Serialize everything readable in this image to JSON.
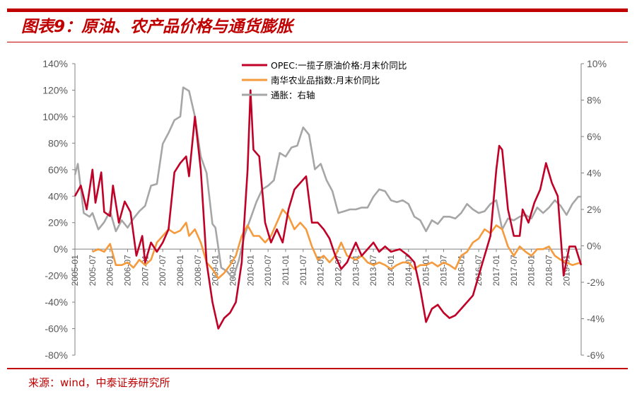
{
  "title": "图表9：原油、农产品价格与通货膨胀",
  "source": "来源：wind，中泰证券研究所",
  "colors": {
    "brand": "#c00000",
    "opec": "#c00026",
    "agri": "#f59b3d",
    "cpi": "#a6a6a6",
    "axis": "#808080"
  },
  "chart_data": {
    "type": "line",
    "x_start": "2005-01",
    "x_end": "2019-06",
    "x_tick_labels": [
      "2005-01",
      "2005-07",
      "2006-01",
      "2006-07",
      "2007-01",
      "2007-07",
      "2008-01",
      "2008-07",
      "2009-01",
      "2009-07",
      "2010-01",
      "2010-07",
      "2011-01",
      "2011-07",
      "2012-01",
      "2012-07",
      "2013-01",
      "2013-07",
      "2014-01",
      "2014-07",
      "2015-01",
      "2015-07",
      "2016-01",
      "2016-07",
      "2017-01",
      "2017-07",
      "2018-01",
      "2018-07",
      "2019-01"
    ],
    "y_left": {
      "min": -0.8,
      "max": 1.4,
      "ticks": [
        "140%",
        "120%",
        "100%",
        "80%",
        "60%",
        "40%",
        "20%",
        "0%",
        "-20%",
        "-40%",
        "-60%",
        "-80%"
      ]
    },
    "y_right": {
      "min": -0.06,
      "max": 0.1,
      "ticks": [
        "10%",
        "8%",
        "6%",
        "4%",
        "2%",
        "0%",
        "-2%",
        "-4%",
        "-6%"
      ]
    },
    "legend": "top-center",
    "series": [
      {
        "name": "OPEC:一揽子原油价格:月末价同比",
        "axis": "left",
        "color": "#c00026",
        "points": [
          [
            "2005-01",
            0.4
          ],
          [
            "2005-03",
            0.48
          ],
          [
            "2005-05",
            0.3
          ],
          [
            "2005-07",
            0.6
          ],
          [
            "2005-08",
            0.35
          ],
          [
            "2005-10",
            0.58
          ],
          [
            "2005-11",
            0.28
          ],
          [
            "2006-01",
            0.25
          ],
          [
            "2006-02",
            0.48
          ],
          [
            "2006-04",
            0.2
          ],
          [
            "2006-06",
            0.36
          ],
          [
            "2006-08",
            0.28
          ],
          [
            "2006-10",
            -0.05
          ],
          [
            "2006-12",
            0.1
          ],
          [
            "2007-01",
            -0.1
          ],
          [
            "2007-03",
            0.05
          ],
          [
            "2007-05",
            -0.02
          ],
          [
            "2007-07",
            0.05
          ],
          [
            "2007-09",
            0.15
          ],
          [
            "2007-11",
            0.58
          ],
          [
            "2008-01",
            0.65
          ],
          [
            "2008-03",
            0.7
          ],
          [
            "2008-04",
            0.55
          ],
          [
            "2008-06",
            1.0
          ],
          [
            "2008-08",
            0.6
          ],
          [
            "2008-10",
            -0.1
          ],
          [
            "2008-12",
            -0.4
          ],
          [
            "2009-02",
            -0.6
          ],
          [
            "2009-04",
            -0.52
          ],
          [
            "2009-06",
            -0.48
          ],
          [
            "2009-08",
            -0.4
          ],
          [
            "2009-10",
            -0.1
          ],
          [
            "2009-12",
            0.6
          ],
          [
            "2010-01",
            1.2
          ],
          [
            "2010-02",
            0.75
          ],
          [
            "2010-04",
            0.7
          ],
          [
            "2010-06",
            0.2
          ],
          [
            "2010-08",
            0.05
          ],
          [
            "2010-10",
            0.15
          ],
          [
            "2010-12",
            0.05
          ],
          [
            "2011-02",
            0.3
          ],
          [
            "2011-04",
            0.45
          ],
          [
            "2011-06",
            0.5
          ],
          [
            "2011-08",
            0.55
          ],
          [
            "2011-10",
            0.2
          ],
          [
            "2011-12",
            0.2
          ],
          [
            "2012-02",
            0.15
          ],
          [
            "2012-04",
            0.08
          ],
          [
            "2012-06",
            -0.05
          ],
          [
            "2012-08",
            -0.15
          ],
          [
            "2012-10",
            -0.1
          ],
          [
            "2013-01",
            0.05
          ],
          [
            "2013-03",
            -0.05
          ],
          [
            "2013-05",
            0.0
          ],
          [
            "2013-07",
            0.05
          ],
          [
            "2013-09",
            -0.02
          ],
          [
            "2013-11",
            0.02
          ],
          [
            "2014-01",
            -0.02
          ],
          [
            "2014-04",
            0.0
          ],
          [
            "2014-07",
            -0.05
          ],
          [
            "2014-09",
            -0.1
          ],
          [
            "2014-11",
            -0.3
          ],
          [
            "2015-01",
            -0.55
          ],
          [
            "2015-03",
            -0.45
          ],
          [
            "2015-05",
            -0.42
          ],
          [
            "2015-07",
            -0.48
          ],
          [
            "2015-09",
            -0.52
          ],
          [
            "2015-11",
            -0.5
          ],
          [
            "2016-01",
            -0.45
          ],
          [
            "2016-03",
            -0.4
          ],
          [
            "2016-05",
            -0.35
          ],
          [
            "2016-07",
            -0.2
          ],
          [
            "2016-09",
            -0.05
          ],
          [
            "2016-11",
            0.1
          ],
          [
            "2017-01",
            0.6
          ],
          [
            "2017-02",
            0.78
          ],
          [
            "2017-03",
            0.75
          ],
          [
            "2017-05",
            0.3
          ],
          [
            "2017-07",
            0.1
          ],
          [
            "2017-09",
            0.1
          ],
          [
            "2017-10",
            0.3
          ],
          [
            "2017-12",
            0.2
          ],
          [
            "2018-02",
            0.35
          ],
          [
            "2018-04",
            0.45
          ],
          [
            "2018-06",
            0.65
          ],
          [
            "2018-08",
            0.5
          ],
          [
            "2018-10",
            0.4
          ],
          [
            "2018-12",
            -0.2
          ],
          [
            "2019-02",
            0.02
          ],
          [
            "2019-04",
            0.02
          ],
          [
            "2019-06",
            -0.12
          ]
        ]
      },
      {
        "name": "南华农业品指数:月末价同比",
        "axis": "left",
        "color": "#f59b3d",
        "points": [
          [
            "2005-07",
            -0.02
          ],
          [
            "2005-09",
            0.0
          ],
          [
            "2005-11",
            -0.02
          ],
          [
            "2006-01",
            0.04
          ],
          [
            "2006-03",
            -0.12
          ],
          [
            "2006-05",
            -0.12
          ],
          [
            "2006-07",
            -0.1
          ],
          [
            "2006-09",
            -0.14
          ],
          [
            "2006-11",
            -0.08
          ],
          [
            "2007-01",
            -0.12
          ],
          [
            "2007-03",
            -0.08
          ],
          [
            "2007-05",
            0.05
          ],
          [
            "2007-07",
            0.1
          ],
          [
            "2007-09",
            0.15
          ],
          [
            "2007-11",
            0.12
          ],
          [
            "2008-01",
            0.14
          ],
          [
            "2008-03",
            0.2
          ],
          [
            "2008-04",
            0.1
          ],
          [
            "2008-06",
            0.15
          ],
          [
            "2008-08",
            0.05
          ],
          [
            "2008-10",
            -0.1
          ],
          [
            "2008-12",
            -0.15
          ],
          [
            "2009-02",
            -0.22
          ],
          [
            "2009-04",
            -0.18
          ],
          [
            "2009-06",
            -0.12
          ],
          [
            "2009-08",
            -0.05
          ],
          [
            "2009-10",
            0.1
          ],
          [
            "2009-12",
            0.18
          ],
          [
            "2010-02",
            0.1
          ],
          [
            "2010-04",
            0.1
          ],
          [
            "2010-06",
            0.05
          ],
          [
            "2010-08",
            0.1
          ],
          [
            "2010-10",
            0.2
          ],
          [
            "2010-12",
            0.3
          ],
          [
            "2011-02",
            0.25
          ],
          [
            "2011-04",
            0.15
          ],
          [
            "2011-06",
            0.2
          ],
          [
            "2011-08",
            0.15
          ],
          [
            "2011-10",
            0.02
          ],
          [
            "2011-12",
            -0.08
          ],
          [
            "2012-02",
            -0.05
          ],
          [
            "2012-04",
            -0.1
          ],
          [
            "2012-06",
            -0.05
          ],
          [
            "2012-08",
            0.05
          ],
          [
            "2012-10",
            -0.05
          ],
          [
            "2013-01",
            -0.08
          ],
          [
            "2013-03",
            -0.05
          ],
          [
            "2013-05",
            -0.1
          ],
          [
            "2013-07",
            -0.12
          ],
          [
            "2013-09",
            -0.1
          ],
          [
            "2013-11",
            -0.12
          ],
          [
            "2014-01",
            -0.15
          ],
          [
            "2014-03",
            -0.12
          ],
          [
            "2014-05",
            -0.1
          ],
          [
            "2014-07",
            -0.1
          ],
          [
            "2014-09",
            -0.15
          ],
          [
            "2014-11",
            -0.12
          ],
          [
            "2015-01",
            -0.12
          ],
          [
            "2015-03",
            -0.1
          ],
          [
            "2015-05",
            -0.13
          ],
          [
            "2015-07",
            -0.1
          ],
          [
            "2015-09",
            -0.12
          ],
          [
            "2015-11",
            -0.15
          ],
          [
            "2016-01",
            -0.05
          ],
          [
            "2016-03",
            -0.02
          ],
          [
            "2016-05",
            0.05
          ],
          [
            "2016-07",
            0.08
          ],
          [
            "2016-09",
            0.15
          ],
          [
            "2016-11",
            0.12
          ],
          [
            "2017-01",
            0.18
          ],
          [
            "2017-03",
            0.15
          ],
          [
            "2017-05",
            0.02
          ],
          [
            "2017-07",
            -0.05
          ],
          [
            "2017-09",
            0.02
          ],
          [
            "2017-11",
            -0.02
          ],
          [
            "2018-01",
            -0.05
          ],
          [
            "2018-03",
            0.0
          ],
          [
            "2018-05",
            0.0
          ],
          [
            "2018-07",
            0.02
          ],
          [
            "2018-09",
            -0.05
          ],
          [
            "2018-11",
            -0.08
          ],
          [
            "2019-01",
            -0.1
          ],
          [
            "2019-03",
            -0.12
          ],
          [
            "2019-06",
            -0.1
          ]
        ]
      },
      {
        "name": "通胀：右轴",
        "axis": "right",
        "color": "#a6a6a6",
        "points": [
          [
            "2005-01",
            0.039
          ],
          [
            "2005-02",
            0.045
          ],
          [
            "2005-04",
            0.018
          ],
          [
            "2005-06",
            0.016
          ],
          [
            "2005-07",
            0.018
          ],
          [
            "2005-09",
            0.009
          ],
          [
            "2005-11",
            0.013
          ],
          [
            "2006-01",
            0.019
          ],
          [
            "2006-03",
            0.008
          ],
          [
            "2006-05",
            0.014
          ],
          [
            "2006-07",
            0.01
          ],
          [
            "2006-09",
            0.015
          ],
          [
            "2006-11",
            0.019
          ],
          [
            "2007-01",
            0.022
          ],
          [
            "2007-03",
            0.033
          ],
          [
            "2007-05",
            0.034
          ],
          [
            "2007-07",
            0.056
          ],
          [
            "2007-09",
            0.062
          ],
          [
            "2007-11",
            0.069
          ],
          [
            "2008-01",
            0.071
          ],
          [
            "2008-02",
            0.087
          ],
          [
            "2008-04",
            0.085
          ],
          [
            "2008-06",
            0.071
          ],
          [
            "2008-08",
            0.049
          ],
          [
            "2008-10",
            0.04
          ],
          [
            "2008-12",
            0.012
          ],
          [
            "2009-01",
            0.01
          ],
          [
            "2009-03",
            -0.012
          ],
          [
            "2009-05",
            -0.014
          ],
          [
            "2009-07",
            -0.018
          ],
          [
            "2009-09",
            -0.008
          ],
          [
            "2009-11",
            0.006
          ],
          [
            "2010-01",
            0.015
          ],
          [
            "2010-03",
            0.024
          ],
          [
            "2010-05",
            0.031
          ],
          [
            "2010-07",
            0.033
          ],
          [
            "2010-09",
            0.036
          ],
          [
            "2010-11",
            0.051
          ],
          [
            "2011-01",
            0.049
          ],
          [
            "2011-03",
            0.054
          ],
          [
            "2011-05",
            0.055
          ],
          [
            "2011-07",
            0.065
          ],
          [
            "2011-09",
            0.061
          ],
          [
            "2011-11",
            0.042
          ],
          [
            "2012-01",
            0.045
          ],
          [
            "2012-03",
            0.036
          ],
          [
            "2012-05",
            0.03
          ],
          [
            "2012-07",
            0.018
          ],
          [
            "2012-09",
            0.019
          ],
          [
            "2012-11",
            0.02
          ],
          [
            "2013-01",
            0.02
          ],
          [
            "2013-03",
            0.021
          ],
          [
            "2013-05",
            0.021
          ],
          [
            "2013-07",
            0.027
          ],
          [
            "2013-09",
            0.031
          ],
          [
            "2013-11",
            0.03
          ],
          [
            "2014-01",
            0.025
          ],
          [
            "2014-03",
            0.024
          ],
          [
            "2014-05",
            0.025
          ],
          [
            "2014-07",
            0.023
          ],
          [
            "2014-09",
            0.016
          ],
          [
            "2014-11",
            0.014
          ],
          [
            "2015-01",
            0.008
          ],
          [
            "2015-03",
            0.014
          ],
          [
            "2015-05",
            0.012
          ],
          [
            "2015-07",
            0.016
          ],
          [
            "2015-09",
            0.016
          ],
          [
            "2015-11",
            0.015
          ],
          [
            "2016-01",
            0.018
          ],
          [
            "2016-03",
            0.023
          ],
          [
            "2016-05",
            0.02
          ],
          [
            "2016-07",
            0.018
          ],
          [
            "2016-09",
            0.019
          ],
          [
            "2016-11",
            0.023
          ],
          [
            "2017-01",
            0.025
          ],
          [
            "2017-03",
            0.009
          ],
          [
            "2017-05",
            0.015
          ],
          [
            "2017-07",
            0.014
          ],
          [
            "2017-09",
            0.016
          ],
          [
            "2017-11",
            0.017
          ],
          [
            "2018-01",
            0.015
          ],
          [
            "2018-03",
            0.021
          ],
          [
            "2018-05",
            0.018
          ],
          [
            "2018-07",
            0.021
          ],
          [
            "2018-09",
            0.025
          ],
          [
            "2018-11",
            0.022
          ],
          [
            "2019-01",
            0.017
          ],
          [
            "2019-03",
            0.023
          ],
          [
            "2019-05",
            0.027
          ],
          [
            "2019-06",
            0.027
          ]
        ]
      }
    ]
  }
}
